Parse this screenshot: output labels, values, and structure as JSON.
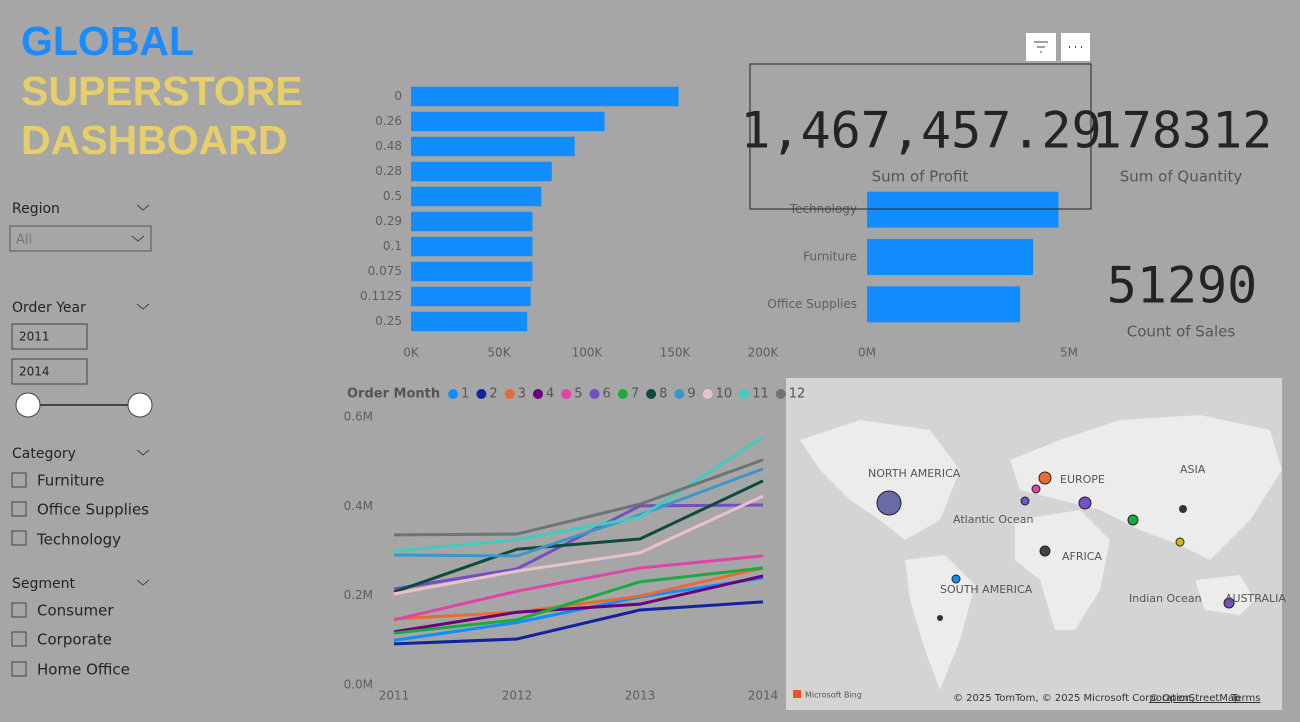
{
  "header": {
    "title_lines": [
      "GLOBAL",
      "SUPERSTORE",
      "DASHBOARD"
    ]
  },
  "slicers": {
    "region": {
      "title": "Region",
      "value": "All"
    },
    "order_year": {
      "title": "Order Year",
      "from": "2011",
      "to": "2014"
    },
    "category": {
      "title": "Category",
      "items": [
        "Furniture",
        "Office Supplies",
        "Technology"
      ]
    },
    "segment": {
      "title": "Segment",
      "items": [
        "Consumer",
        "Corporate",
        "Home Office"
      ]
    }
  },
  "cards": [
    {
      "value": "1,467,457.29",
      "label": "Sum of Profit"
    },
    {
      "value": "178312",
      "label": "Sum of Quantity"
    },
    {
      "value": "51290",
      "label": "Count of Sales"
    }
  ],
  "chart_data": [
    {
      "type": "hbar",
      "categories": [
        "0",
        "0.26",
        "0.48",
        "0.28",
        "0.5",
        "0.29",
        "0.1",
        "0.075",
        "0.1125",
        "0.25"
      ],
      "values": [
        152000,
        110000,
        93000,
        80000,
        74000,
        69000,
        69000,
        69000,
        68000,
        66000
      ],
      "color": "#118dff",
      "xlim": [
        0,
        200000
      ],
      "xticks": [
        {
          "value": 0,
          "label": "0K"
        },
        {
          "value": 50000,
          "label": "50K"
        },
        {
          "value": 100000,
          "label": "100K"
        },
        {
          "value": 150000,
          "label": "150K"
        },
        {
          "value": 200000,
          "label": "200K"
        }
      ]
    },
    {
      "type": "hbar",
      "categories": [
        "Technology",
        "Furniture",
        "Office Supplies"
      ],
      "values": [
        4740000,
        4110000,
        3790000
      ],
      "color": "#118dff",
      "xlim": [
        0,
        5000000
      ],
      "xticks": [
        {
          "value": 0,
          "label": "0M"
        },
        {
          "value": 5000000,
          "label": "5M"
        }
      ]
    },
    {
      "type": "line",
      "legend_title": "Order Month",
      "categories": [
        "2011",
        "2012",
        "2013",
        "2014"
      ],
      "ylim": [
        0,
        600000
      ],
      "yticks": [
        {
          "value": 0,
          "label": "0.0M"
        },
        {
          "value": 200000,
          "label": "0.2M"
        },
        {
          "value": 400000,
          "label": "0.4M"
        },
        {
          "value": 600000,
          "label": "0.6M"
        }
      ],
      "grid": true,
      "series": [
        {
          "name": "1",
          "color": "#118dff",
          "values": [
            100000,
            140000,
            197000,
            240000
          ]
        },
        {
          "name": "2",
          "color": "#12239e",
          "values": [
            92000,
            103000,
            168000,
            186000
          ]
        },
        {
          "name": "3",
          "color": "#e66c37",
          "values": [
            148000,
            163000,
            199000,
            262000
          ]
        },
        {
          "name": "4",
          "color": "#6b007b",
          "values": [
            119000,
            163000,
            181000,
            244000
          ]
        },
        {
          "name": "5",
          "color": "#e044a7",
          "values": [
            146000,
            210000,
            262000,
            289000
          ]
        },
        {
          "name": "6",
          "color": "#744ec2",
          "values": [
            215000,
            260000,
            401000,
            403000
          ]
        },
        {
          "name": "7",
          "color": "#1aab40",
          "values": [
            116000,
            146000,
            231000,
            262000
          ]
        },
        {
          "name": "8",
          "color": "#0d4a40",
          "values": [
            208000,
            304000,
            327000,
            457000
          ]
        },
        {
          "name": "9",
          "color": "#3a98c8",
          "values": [
            291000,
            289000,
            381000,
            484000
          ]
        },
        {
          "name": "10",
          "color": "#e8c3c6",
          "values": [
            204000,
            255000,
            296000,
            423000
          ]
        },
        {
          "name": "11",
          "color": "#45c9c0",
          "values": [
            300000,
            325000,
            376000,
            555000
          ]
        },
        {
          "name": "12",
          "color": "#6b7575",
          "values": [
            336000,
            338000,
            405000,
            504000
          ]
        }
      ]
    }
  ],
  "map": {
    "labels": [
      "NORTH AMERICA",
      "EUROPE",
      "ASIA",
      "Atlantic Ocean",
      "AFRICA",
      "SOUTH AMERICA",
      "Indian Ocean",
      "AUSTRALIA"
    ],
    "brand": "Microsoft Bing",
    "copyright": "© 2025 TomTom, © 2025 Microsoft Corporation,",
    "osm": "© OpenStreetMap",
    "terms": "Terms"
  }
}
